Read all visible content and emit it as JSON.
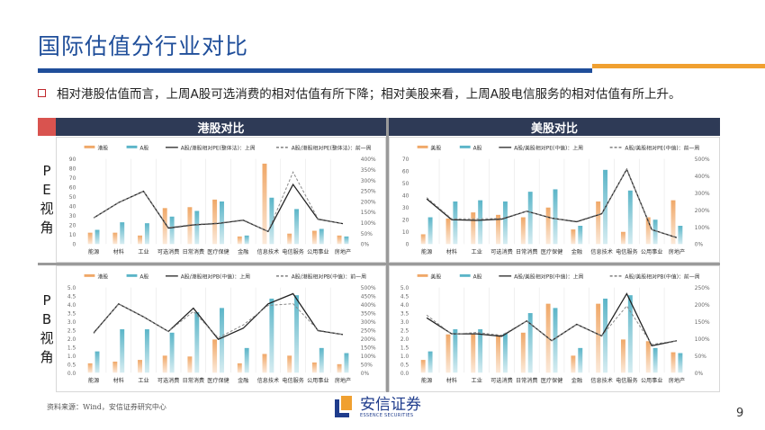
{
  "title": "国际估值分行业对比",
  "bullet": "相对港股估值而言，上周A股可选消费的相对估值有所下降；相对美股来看，上周A股电信服务的相对估值有所上升。",
  "headers": {
    "left": "港股对比",
    "right": "美股对比"
  },
  "rows": {
    "pe": [
      "P",
      "E",
      "视",
      "角"
    ],
    "pb": [
      "P",
      "B",
      "视",
      "角"
    ]
  },
  "source": "资料来源：Wind，安信证券研究中心",
  "logo": {
    "cn": "安信证券",
    "en": "ESSENCE SECURITIES"
  },
  "page_number": "9",
  "colors": {
    "bar1": "#f0a868",
    "bar2": "#5bb5c8",
    "line": "#222222",
    "title": "#1f4e9a",
    "accent": "#f0a030"
  },
  "chart_data": [
    {
      "id": "hk-pe",
      "type": "bar+line",
      "categories": [
        "能源",
        "材料",
        "工业",
        "可选消费",
        "日常消费",
        "医疗保健",
        "金融",
        "信息技术",
        "电信服务",
        "公用事业",
        "房地产"
      ],
      "series": [
        {
          "name": "港股",
          "kind": "bar",
          "values": [
            12,
            12,
            9,
            38,
            39,
            47,
            8,
            85,
            11,
            14,
            9
          ]
        },
        {
          "name": "A股",
          "kind": "bar",
          "values": [
            15,
            23,
            22,
            29,
            35,
            45,
            9,
            49,
            37,
            16,
            8
          ]
        },
        {
          "name": "A股/港股相对PE(整体法)：上周",
          "kind": "line",
          "values": [
            123,
            195,
            248,
            75,
            90,
            97,
            112,
            59,
            280,
            117,
            96
          ]
        },
        {
          "name": "A股/港股相对PE(整体法)：前一周",
          "kind": "dashed",
          "values": [
            123,
            195,
            248,
            78,
            92,
            99,
            114,
            59,
            338,
            119,
            96
          ]
        }
      ],
      "ylim": [
        0,
        90
      ],
      "ystep": 10,
      "y2lim": [
        0,
        400
      ],
      "y2step": 50,
      "y2unit": "%",
      "ydecimals": 0
    },
    {
      "id": "us-pe",
      "type": "bar+line",
      "categories": [
        "能源",
        "材料",
        "工业",
        "可选消费",
        "日常消费",
        "医疗保健",
        "金融",
        "信息技术",
        "电信服务",
        "公用事业",
        "房地产"
      ],
      "series": [
        {
          "name": "美股",
          "kind": "bar",
          "values": [
            8,
            21,
            26,
            24,
            22,
            30,
            12,
            35,
            10,
            22,
            36
          ]
        },
        {
          "name": "A股",
          "kind": "bar",
          "values": [
            22,
            35,
            36,
            35,
            43,
            45,
            15,
            61,
            44,
            20,
            15
          ]
        },
        {
          "name": "A股/美股相对PE(中值)：上周",
          "kind": "line",
          "values": [
            265,
            143,
            139,
            146,
            193,
            152,
            131,
            178,
            439,
            85,
            38
          ]
        },
        {
          "name": "A股/美股相对PE(中值)：前一周",
          "kind": "dashed",
          "values": [
            273,
            148,
            148,
            150,
            193,
            152,
            134,
            180,
            439,
            85,
            38
          ]
        }
      ],
      "ylim": [
        0,
        70
      ],
      "ystep": 10,
      "y2lim": [
        0,
        500
      ],
      "y2step": 100,
      "y2unit": "%",
      "ydecimals": 0
    },
    {
      "id": "hk-pb",
      "type": "bar+line",
      "categories": [
        "能源",
        "材料",
        "工业",
        "可选消费",
        "日常消费",
        "医疗保健",
        "金融",
        "信息技术",
        "电信服务",
        "公用事业",
        "房地产"
      ],
      "series": [
        {
          "name": "港股",
          "kind": "bar",
          "values": [
            0.55,
            0.65,
            0.75,
            1.0,
            0.95,
            1.95,
            0.55,
            1.1,
            1.0,
            0.6,
            0.5
          ]
        },
        {
          "name": "A股",
          "kind": "bar",
          "values": [
            1.25,
            2.55,
            2.55,
            2.35,
            3.55,
            3.8,
            1.45,
            4.35,
            4.55,
            1.45,
            1.15
          ]
        },
        {
          "name": "A股/港股相对PB(中值)：上周",
          "kind": "line",
          "values": [
            234,
            404,
            328,
            242,
            379,
            196,
            261,
            404,
            464,
            247,
            224
          ]
        },
        {
          "name": "A股/港股相对PB(中值)：前一周",
          "kind": "dashed",
          "values": [
            230,
            404,
            328,
            242,
            360,
            205,
            280,
            395,
            405,
            250,
            224
          ]
        }
      ],
      "ylim": [
        0,
        5
      ],
      "ystep": 0.5,
      "y2lim": [
        0,
        500
      ],
      "y2step": 50,
      "y2unit": "%",
      "ydecimals": 1
    },
    {
      "id": "us-pb",
      "type": "bar+line",
      "categories": [
        "能源",
        "材料",
        "工业",
        "可选消费",
        "日常消费",
        "医疗保健",
        "金融",
        "信息技术",
        "电信服务",
        "公用事业",
        "房地产"
      ],
      "series": [
        {
          "name": "美股",
          "kind": "bar",
          "values": [
            0.75,
            2.25,
            2.25,
            2.2,
            2.35,
            4.05,
            1.0,
            4.05,
            1.95,
            1.85,
            1.2
          ]
        },
        {
          "name": "A股",
          "kind": "bar",
          "values": [
            1.25,
            2.55,
            2.55,
            2.3,
            3.5,
            3.8,
            1.45,
            4.35,
            4.55,
            1.45,
            1.15
          ]
        },
        {
          "name": "A股/美股相对PB(中值)：上周",
          "kind": "line",
          "values": [
            161,
            114,
            114,
            107,
            152,
            94,
            142,
            108,
            232,
            79,
            94
          ]
        },
        {
          "name": "A股/美股相对PB(中值)：前一周",
          "kind": "dashed",
          "values": [
            169,
            113,
            118,
            110,
            152,
            94,
            142,
            108,
            196,
            83,
            94
          ]
        }
      ],
      "ylim": [
        0,
        5
      ],
      "ystep": 0.5,
      "y2lim": [
        0,
        250
      ],
      "y2step": 50,
      "y2unit": "%",
      "ydecimals": 1
    }
  ]
}
